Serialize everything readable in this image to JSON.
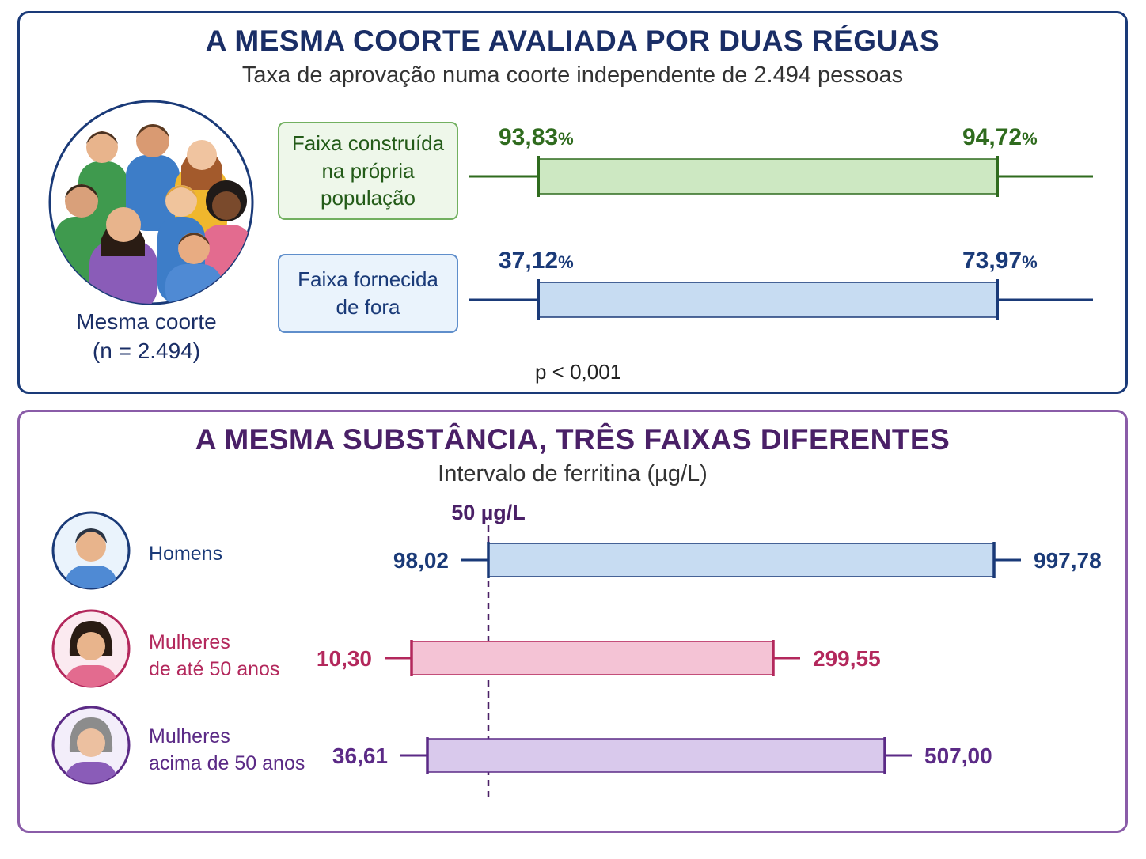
{
  "top_panel": {
    "title": "A MESMA COORTE AVALIADA POR DUAS RÉGUAS",
    "subtitle": "Taxa de aprovação numa coorte independente de 2.494 pessoas",
    "cohort_caption": "Mesma coorte\n(n = 2.494)",
    "p_value": "p < 0,001",
    "colors": {
      "green": "#2f6b1e",
      "green_fill": "#cde8c2",
      "blue": "#1a3a78",
      "blue_fill": "#c7dcf2"
    },
    "rows": [
      {
        "label": "Faixa construída\nna própria\npopulação",
        "low_text": "93,83",
        "high_text": "94,72",
        "unit": "%"
      },
      {
        "label": "Faixa fornecida\nde fora",
        "low_text": "37,12",
        "high_text": "73,97",
        "unit": "%"
      }
    ]
  },
  "bottom_panel": {
    "title": "A MESMA SUBSTÂNCIA, TRÊS FAIXAS DIFERENTES",
    "subtitle": "Intervalo de ferritina (µg/L)",
    "reference_label": "50 µg/L",
    "rows": [
      {
        "label": "Homens",
        "low_text": "98,02",
        "high_text": "997,78",
        "color": "#1a3a78",
        "fill": "#c7dcf2",
        "icon": "man-avatar-icon"
      },
      {
        "label": "Mulheres\nde até 50 anos",
        "low_text": "10,30",
        "high_text": "299,55",
        "color": "#b3285c",
        "fill": "#f4c3d5",
        "icon": "woman-avatar-icon"
      },
      {
        "label": "Mulheres\nacima de 50 anos",
        "low_text": "36,61",
        "high_text": "507,00",
        "color": "#5b2a86",
        "fill": "#d9c9ec",
        "icon": "older-woman-avatar-icon"
      }
    ]
  },
  "chart_data": [
    {
      "type": "interval",
      "title": "A MESMA COORTE AVALIADA POR DUAS RÉGUAS",
      "subtitle": "Taxa de aprovação numa coorte independente de 2.494 pessoas",
      "unit": "%",
      "series": [
        {
          "name": "Faixa construída na própria população",
          "low": 93.83,
          "high": 94.72
        },
        {
          "name": "Faixa fornecida de fora",
          "low": 37.12,
          "high": 73.97
        }
      ],
      "annotations": [
        "p < 0,001"
      ]
    },
    {
      "type": "interval",
      "title": "A MESMA SUBSTÂNCIA, TRÊS FAIXAS DIFERENTES",
      "subtitle": "Intervalo de ferritina (µg/L)",
      "unit": "µg/L",
      "reference_line": 50,
      "series": [
        {
          "name": "Homens",
          "low": 98.02,
          "high": 997.78
        },
        {
          "name": "Mulheres de até 50 anos",
          "low": 10.3,
          "high": 299.55
        },
        {
          "name": "Mulheres acima de 50 anos",
          "low": 36.61,
          "high": 507.0
        }
      ]
    }
  ]
}
